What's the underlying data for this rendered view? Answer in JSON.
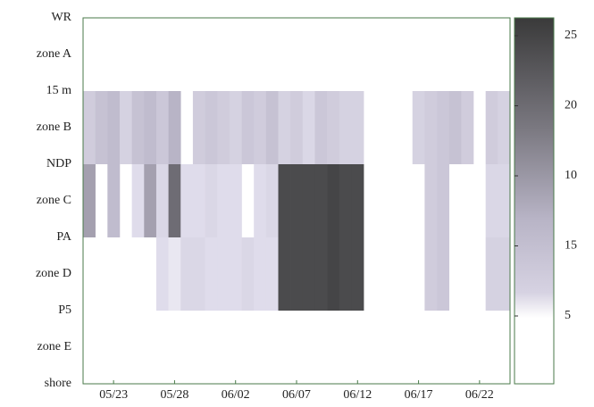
{
  "chart_data": {
    "type": "heatmap",
    "y_labels": [
      "WR",
      "zone A",
      "15 m",
      "zone B",
      "NDP",
      "zone C",
      "PA",
      "zone D",
      "P5",
      "zone E",
      "shore"
    ],
    "x": [
      141,
      142,
      143,
      144,
      145,
      146,
      147,
      148,
      149,
      150,
      151,
      152,
      153,
      154,
      155,
      156,
      157,
      158,
      159,
      160,
      161,
      162,
      163,
      164,
      165,
      166,
      167,
      168,
      169,
      170,
      171,
      172,
      173,
      174,
      175
    ],
    "xlim": [
      140.5,
      175.5
    ],
    "xticks": [
      {
        "value": 143,
        "label": "05/23"
      },
      {
        "value": 148,
        "label": "05/28"
      },
      {
        "value": 153,
        "label": "06/02"
      },
      {
        "value": 158,
        "label": "06/07"
      },
      {
        "value": 163,
        "label": "06/12"
      },
      {
        "value": 168,
        "label": "06/17"
      },
      {
        "value": 173,
        "label": "06/22"
      }
    ],
    "z": [
      [
        null,
        null,
        null,
        null,
        null,
        null,
        null,
        null,
        null,
        null,
        null,
        null,
        null,
        null,
        null,
        null,
        null,
        null,
        null,
        null,
        null,
        null,
        null,
        null,
        null,
        null,
        null,
        null,
        null,
        null,
        null,
        null,
        null,
        null,
        null
      ],
      [
        6,
        8,
        9,
        5,
        8,
        9,
        7,
        10,
        null,
        6,
        7,
        6,
        5,
        7,
        6,
        8,
        5,
        6,
        4,
        7,
        6,
        5,
        5,
        null,
        null,
        null,
        null,
        5,
        6,
        7,
        8,
        6,
        null,
        6,
        5
      ],
      [
        12,
        null,
        9,
        null,
        3,
        12,
        4,
        18,
        3,
        3,
        4,
        3,
        3,
        null,
        3,
        4,
        24,
        24,
        24,
        24,
        25,
        24,
        24,
        null,
        null,
        null,
        null,
        null,
        6,
        7,
        null,
        null,
        null,
        4,
        4
      ],
      [
        null,
        null,
        null,
        null,
        null,
        null,
        3,
        2,
        4,
        4,
        3,
        3,
        3,
        4,
        3,
        3,
        24,
        24,
        24,
        24,
        25,
        24,
        24,
        null,
        null,
        null,
        null,
        null,
        6,
        7,
        null,
        null,
        null,
        5,
        5
      ],
      [
        null,
        null,
        null,
        null,
        null,
        null,
        null,
        null,
        null,
        null,
        null,
        null,
        null,
        null,
        null,
        null,
        null,
        null,
        null,
        null,
        null,
        null,
        null,
        null,
        null,
        null,
        null,
        null,
        null,
        null,
        null,
        null,
        null,
        null,
        null
      ]
    ],
    "clim": [
      0,
      27
    ],
    "colorbar_labels": [
      "25",
      "20",
      "10",
      "15",
      "5"
    ]
  }
}
